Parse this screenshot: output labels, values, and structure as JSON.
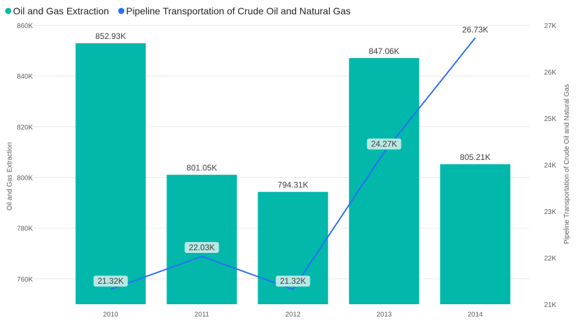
{
  "chart_data": {
    "type": "bar+line",
    "categories": [
      "2010",
      "2011",
      "2012",
      "2013",
      "2014"
    ],
    "series": [
      {
        "name": "Oil and Gas Extraction",
        "type": "bar",
        "axis": "left",
        "color": "#01B8AA",
        "values": [
          852930,
          801050,
          794310,
          847060,
          805210
        ],
        "labels": [
          "852.93K",
          "801.05K",
          "794.31K",
          "847.06K",
          "805.21K"
        ]
      },
      {
        "name": "Pipeline Transportation of Crude Oil and Natural Gas",
        "type": "line",
        "axis": "right",
        "color": "#2B6EF3",
        "values": [
          21320,
          22030,
          21320,
          24270,
          26730
        ],
        "labels": [
          "21.32K",
          "22.03K",
          "21.32K",
          "24.27K",
          "26.73K"
        ]
      }
    ],
    "y_left": {
      "label": "Oil and Gas Extraction",
      "range": [
        750000,
        860000
      ],
      "ticks": [
        760000,
        780000,
        800000,
        820000,
        840000,
        860000
      ],
      "tick_labels": [
        "760K",
        "780K",
        "800K",
        "820K",
        "840K",
        "860K"
      ]
    },
    "y_right": {
      "label": "Pipeline Transportation of Crude Oil and Natural Gas",
      "range": [
        21000,
        27000
      ],
      "ticks": [
        21000,
        22000,
        23000,
        24000,
        25000,
        26000,
        27000
      ],
      "tick_labels": [
        "21K",
        "22K",
        "23K",
        "24K",
        "25K",
        "26K",
        "27K"
      ]
    },
    "grid": true,
    "legend_position": "top-left"
  }
}
